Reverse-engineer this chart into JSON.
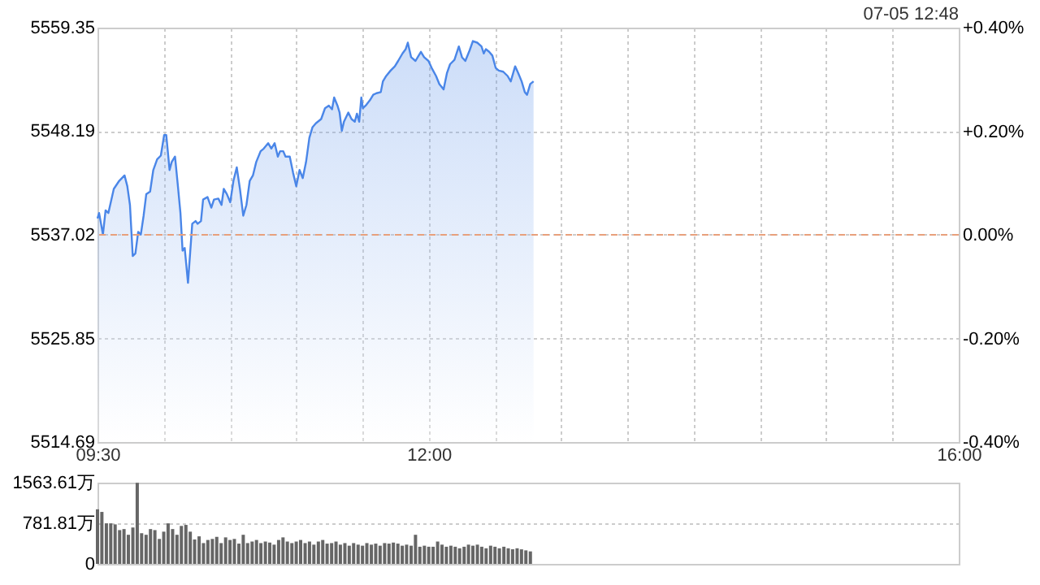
{
  "chart_data": [
    {
      "type": "area",
      "color": "#4a86e8",
      "x": [
        9.5,
        9.512,
        9.541,
        9.561,
        9.582,
        9.623,
        9.664,
        9.704,
        9.725,
        9.745,
        9.766,
        9.786,
        9.807,
        9.827,
        9.848,
        9.868,
        9.897,
        9.921,
        9.95,
        9.978,
        10.003,
        10.019,
        10.044,
        10.06,
        10.085,
        10.105,
        10.126,
        10.142,
        10.158,
        10.183,
        10.199,
        10.215,
        10.24,
        10.256,
        10.281,
        10.297,
        10.33,
        10.359,
        10.379,
        10.412,
        10.436,
        10.453,
        10.477,
        10.502,
        10.526,
        10.551,
        10.575,
        10.6,
        10.624,
        10.649,
        10.673,
        10.698,
        10.731,
        10.755,
        10.788,
        10.812,
        10.837,
        10.861,
        10.878,
        10.902,
        10.919,
        10.951,
        10.976,
        11.0,
        11.025,
        11.049,
        11.074,
        11.099,
        11.123,
        11.148,
        11.188,
        11.217,
        11.246,
        11.27,
        11.286,
        11.311,
        11.327,
        11.344,
        11.36,
        11.393,
        11.417,
        11.442,
        11.458,
        11.475,
        11.491,
        11.503,
        11.524,
        11.556,
        11.581,
        11.605,
        11.638,
        11.654,
        11.679,
        11.712,
        11.744,
        11.769,
        11.802,
        11.826,
        11.842,
        11.867,
        11.9,
        11.924,
        11.941,
        11.965,
        11.998,
        12.022,
        12.055,
        12.08,
        12.112,
        12.137,
        12.161,
        12.194,
        12.227,
        12.251,
        12.276,
        12.309,
        12.333,
        12.366,
        12.398,
        12.415,
        12.431,
        12.456,
        12.48,
        12.505,
        12.529,
        12.562,
        12.595,
        12.619,
        12.652,
        12.676,
        12.701,
        12.725,
        12.742,
        12.766,
        12.791
      ],
      "values": [
        5538.79,
        5539.37,
        5537.05,
        5539.66,
        5539.37,
        5541.97,
        5542.84,
        5543.42,
        5542.26,
        5540.24,
        5534.73,
        5535.02,
        5537.34,
        5537.05,
        5539.08,
        5541.39,
        5541.68,
        5544.0,
        5545.16,
        5545.56,
        5547.77,
        5547.77,
        5544.0,
        5544.87,
        5545.45,
        5542.55,
        5539.37,
        5535.31,
        5535.6,
        5531.84,
        5535.02,
        5538.21,
        5538.5,
        5538.21,
        5538.5,
        5540.82,
        5541.1,
        5539.95,
        5540.82,
        5540.93,
        5540.24,
        5541.97,
        5541.39,
        5540.53,
        5542.84,
        5544.29,
        5541.97,
        5539.08,
        5540.24,
        5542.84,
        5543.42,
        5544.87,
        5546.03,
        5546.32,
        5546.9,
        5546.32,
        5546.9,
        5545.45,
        5546.03,
        5546.03,
        5545.45,
        5545.45,
        5543.71,
        5542.26,
        5544.0,
        5543.13,
        5544.87,
        5547.48,
        5548.63,
        5549.04,
        5549.5,
        5550.66,
        5550.95,
        5550.55,
        5551.82,
        5550.95,
        5550.2,
        5548.23,
        5549.21,
        5550.2,
        5549.5,
        5549.21,
        5550.08,
        5549.21,
        5551.82,
        5550.66,
        5550.95,
        5551.53,
        5552.11,
        5552.28,
        5552.4,
        5553.56,
        5554.14,
        5554.72,
        5555.18,
        5555.76,
        5556.57,
        5557.03,
        5557.73,
        5556.16,
        5555.76,
        5556.34,
        5556.74,
        5556.16,
        5555.76,
        5555.01,
        5554.14,
        5553.27,
        5552.69,
        5554.43,
        5555.41,
        5555.88,
        5557.32,
        5556.16,
        5555.76,
        5556.92,
        5557.9,
        5557.73,
        5557.32,
        5556.57,
        5557.03,
        5556.74,
        5556.34,
        5555.01,
        5554.72,
        5554.6,
        5554.14,
        5553.56,
        5555.18,
        5554.43,
        5553.56,
        5552.4,
        5552.11,
        5553.27,
        5553.56
      ],
      "xlim": [
        9.5,
        16
      ],
      "xticks": [
        {
          "value": 9.5,
          "label": "09:30"
        },
        {
          "value": 10,
          "label": null
        },
        {
          "value": 10.5,
          "label": null
        },
        {
          "value": 11,
          "label": null
        },
        {
          "value": 11.5,
          "label": null
        },
        {
          "value": 12,
          "label": "12:00"
        },
        {
          "value": 12.5,
          "label": null
        },
        {
          "value": 13,
          "label": null
        },
        {
          "value": 13.5,
          "label": null
        },
        {
          "value": 14,
          "label": null
        },
        {
          "value": 14.5,
          "label": null
        },
        {
          "value": 15,
          "label": null
        },
        {
          "value": 15.5,
          "label": null
        },
        {
          "value": 16,
          "label": "16:00"
        }
      ],
      "ylim": [
        5514.69,
        5559.35
      ],
      "yticks": [
        5514.69,
        5525.85,
        5537.02,
        5548.19,
        5559.35
      ],
      "y2lim": [
        -0.4,
        0.4
      ],
      "y2ticks": [
        {
          "value": -0.4,
          "label": "-0.40%"
        },
        {
          "value": -0.2,
          "label": "-0.20%"
        },
        {
          "value": 0,
          "label": "0.00%"
        },
        {
          "value": 0.2,
          "label": "+0.20%"
        },
        {
          "value": 0.4,
          "label": "+0.40%"
        }
      ],
      "ref_lines": [
        {
          "axis": "y",
          "value": 5537.02,
          "color": "#e8a07c",
          "line_style": "dashed"
        }
      ],
      "grid": true,
      "annotations": [
        "07-05 12:48"
      ]
    },
    {
      "type": "bar",
      "color": "#666666",
      "tick_labels": "y",
      "grid": "y",
      "x": [
        9.5,
        9.533,
        9.567,
        9.6,
        9.633,
        9.667,
        9.7,
        9.733,
        9.767,
        9.8,
        9.833,
        9.867,
        9.9,
        9.933,
        9.967,
        10,
        10.033,
        10.067,
        10.1,
        10.133,
        10.167,
        10.2,
        10.233,
        10.267,
        10.3,
        10.333,
        10.367,
        10.4,
        10.433,
        10.467,
        10.5,
        10.533,
        10.567,
        10.6,
        10.633,
        10.667,
        10.7,
        10.733,
        10.767,
        10.8,
        10.833,
        10.867,
        10.9,
        10.933,
        10.967,
        11,
        11.033,
        11.067,
        11.1,
        11.133,
        11.167,
        11.2,
        11.233,
        11.267,
        11.3,
        11.333,
        11.367,
        11.4,
        11.433,
        11.467,
        11.5,
        11.533,
        11.567,
        11.6,
        11.633,
        11.667,
        11.7,
        11.733,
        11.767,
        11.8,
        11.833,
        11.867,
        11.9,
        11.933,
        11.967,
        12,
        12.033,
        12.067,
        12.1,
        12.133,
        12.167,
        12.2,
        12.233,
        12.267,
        12.3,
        12.333,
        12.367,
        12.4,
        12.433,
        12.467,
        12.5,
        12.533,
        12.567,
        12.6,
        12.633,
        12.667,
        12.7,
        12.733,
        12.767
      ],
      "values": [
        1050,
        1000,
        780,
        780,
        760,
        650,
        670,
        560,
        700,
        1560,
        590,
        560,
        670,
        650,
        480,
        620,
        780,
        670,
        560,
        730,
        750,
        620,
        470,
        530,
        400,
        460,
        480,
        520,
        400,
        510,
        460,
        480,
        390,
        560,
        400,
        430,
        460,
        400,
        430,
        410,
        370,
        460,
        510,
        430,
        400,
        430,
        460,
        400,
        430,
        370,
        430,
        460,
        390,
        400,
        430,
        370,
        400,
        350,
        400,
        370,
        350,
        400,
        370,
        390,
        350,
        400,
        390,
        410,
        390,
        350,
        370,
        350,
        560,
        330,
        350,
        330,
        330,
        430,
        370,
        330,
        350,
        330,
        300,
        330,
        370,
        350,
        370,
        330,
        300,
        350,
        330,
        300,
        330,
        300,
        280,
        300,
        280,
        260,
        240
      ],
      "xlim": [
        9.5,
        16
      ],
      "xticks": [
        {
          "value": 9.5,
          "label": null
        },
        {
          "value": 12,
          "label": null
        },
        {
          "value": 16,
          "label": null
        }
      ],
      "ylim": [
        0,
        1563.61
      ],
      "yticks": [
        0,
        {
          "value": 781.81,
          "label": "781.81万"
        },
        {
          "value": 1563.61,
          "label": "1563.61万"
        }
      ]
    }
  ]
}
